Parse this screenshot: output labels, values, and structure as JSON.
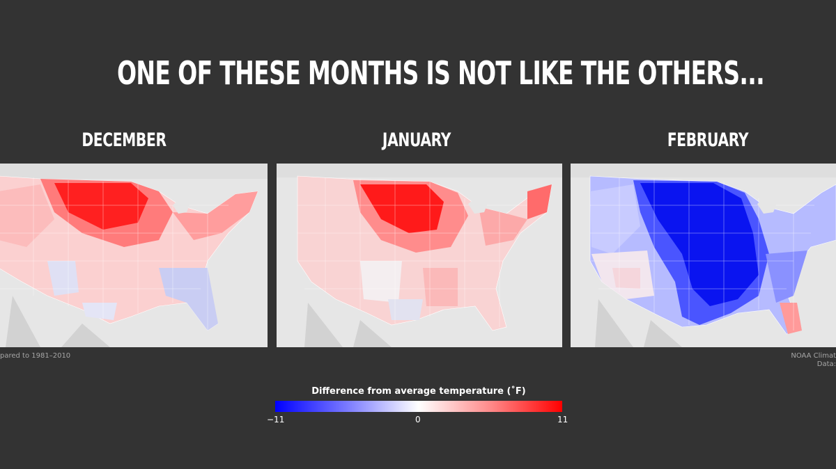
{
  "headline": "ONE OF THESE MONTHS IS NOT LIKE THE OTHERS...",
  "maps": [
    {
      "month": "DECEMBER",
      "anomaly_pattern": "warm",
      "colors": {
        "core": "#ff2020",
        "mid": "#ff7b7b",
        "edge": "#fbd0d0",
        "cool": "#c9cdf3"
      }
    },
    {
      "month": "JANUARY",
      "anomaly_pattern": "warm",
      "colors": {
        "core": "#ff1a1a",
        "mid": "#ff8c8c",
        "edge": "#f9d3d3",
        "cool": "#e2e2f0"
      }
    },
    {
      "month": "FEBRUARY",
      "anomaly_pattern": "cold",
      "colors": {
        "core": "#0a14f0",
        "mid": "#4a55ff",
        "edge": "#b6bbff",
        "warm": "#ff9a9a"
      }
    }
  ],
  "footnotes": {
    "left": "pared to 1981–2010",
    "right_line1": "NOAA Climat",
    "right_line2": "Data:"
  },
  "legend": {
    "title": "Difference from average temperature (˚F)",
    "min_label": "−11",
    "mid_label": "0",
    "max_label": "11",
    "min": -11,
    "mid": 0,
    "max": 11,
    "colors": {
      "cold": "#0000ff",
      "neutral": "#ffffff",
      "warm": "#ff0000"
    }
  }
}
